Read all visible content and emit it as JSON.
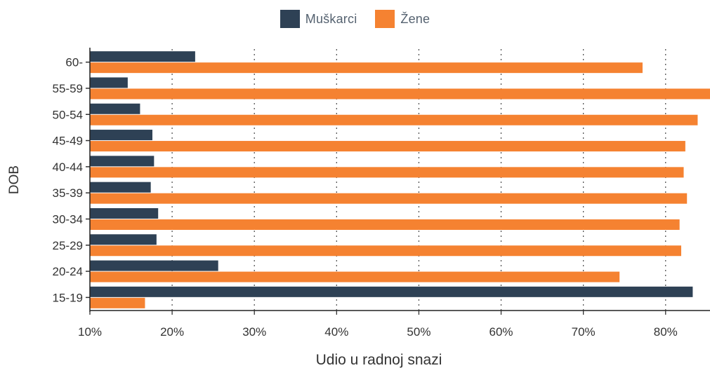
{
  "chart_data": {
    "type": "bar",
    "orientation": "horizontal",
    "categories": [
      "60-",
      "55-59",
      "50-54",
      "45-49",
      "40-44",
      "35-39",
      "30-34",
      "25-29",
      "20-24",
      "15-19"
    ],
    "series": [
      {
        "name": "Muškarci",
        "color": "#2e4155",
        "values": [
          22.8,
          14.6,
          16.1,
          17.6,
          17.8,
          17.4,
          18.3,
          18.1,
          25.6,
          83.3
        ]
      },
      {
        "name": "Žene",
        "color": "#f58231",
        "values": [
          77.2,
          85.4,
          83.9,
          82.4,
          82.2,
          82.6,
          81.7,
          81.9,
          74.4,
          16.7
        ]
      }
    ],
    "xlabel": "Udio u radnoj snazi",
    "ylabel": "DOB",
    "xlim": [
      10,
      85.4
    ],
    "xticks": [
      10,
      20,
      30,
      40,
      50,
      60,
      70,
      80
    ],
    "xtick_labels": [
      "10%",
      "20%",
      "30%",
      "40%",
      "50%",
      "60%",
      "70%",
      "80%"
    ],
    "grid": "vertical dotted",
    "legend_position": "top-center"
  }
}
